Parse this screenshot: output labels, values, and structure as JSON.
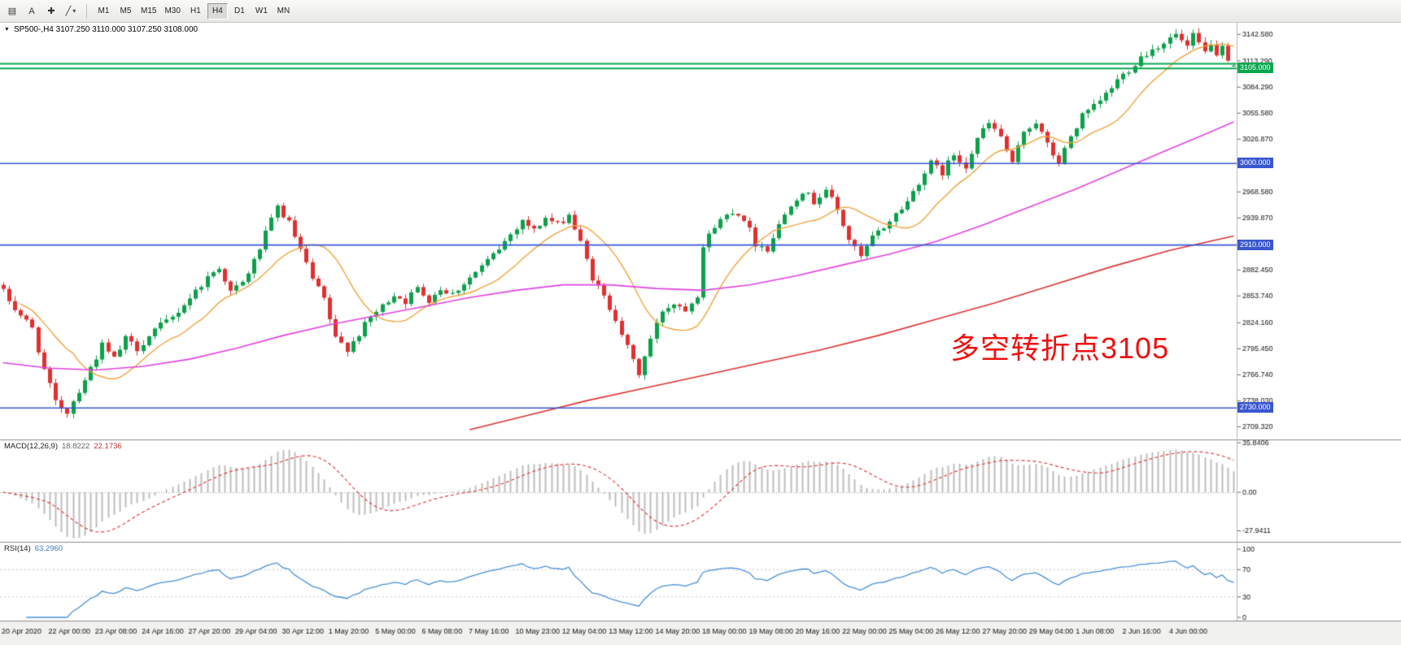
{
  "toolbar": {
    "tools": [
      {
        "id": "chart-window",
        "glyph": "▤"
      },
      {
        "id": "text-label",
        "glyph": "A"
      },
      {
        "id": "crosshair",
        "glyph": "✚"
      },
      {
        "id": "line-studies",
        "glyph": "╱",
        "caret": "▾"
      }
    ],
    "timeframes": [
      {
        "label": "M1",
        "active": false
      },
      {
        "label": "M5",
        "active": false
      },
      {
        "label": "M15",
        "active": false
      },
      {
        "label": "M30",
        "active": false
      },
      {
        "label": "H1",
        "active": false
      },
      {
        "label": "H4",
        "active": true
      },
      {
        "label": "D1",
        "active": false
      },
      {
        "label": "W1",
        "active": false
      },
      {
        "label": "MN",
        "active": false
      }
    ]
  },
  "chart_data": {
    "type": "candlestick",
    "symbol": "SP500-",
    "timeframe": "H4",
    "header_marker": "▼",
    "header": "SP500-,H4  3107.250 3110.000 3107.250 3108.000",
    "last": {
      "open": 3107.25,
      "high": 3110.0,
      "low": 3107.25,
      "close": 3108.0
    },
    "bars": 212,
    "noise": 8,
    "price_range": {
      "max": 3150,
      "min": 2698
    },
    "close_path": [
      [
        0,
        2858
      ],
      [
        2,
        2840
      ],
      [
        5,
        2818
      ],
      [
        7,
        2772
      ],
      [
        9,
        2736
      ],
      [
        11,
        2726
      ],
      [
        14,
        2762
      ],
      [
        17,
        2799
      ],
      [
        19,
        2784
      ],
      [
        21,
        2806
      ],
      [
        23,
        2796
      ],
      [
        26,
        2816
      ],
      [
        29,
        2830
      ],
      [
        32,
        2852
      ],
      [
        35,
        2874
      ],
      [
        37,
        2886
      ],
      [
        39,
        2858
      ],
      [
        41,
        2868
      ],
      [
        43,
        2892
      ],
      [
        45,
        2922
      ],
      [
        47,
        2952
      ],
      [
        49,
        2934
      ],
      [
        51,
        2904
      ],
      [
        53,
        2872
      ],
      [
        55,
        2850
      ],
      [
        57,
        2806
      ],
      [
        59,
        2796
      ],
      [
        61,
        2812
      ],
      [
        63,
        2830
      ],
      [
        65,
        2842
      ],
      [
        67,
        2856
      ],
      [
        69,
        2848
      ],
      [
        71,
        2862
      ],
      [
        73,
        2850
      ],
      [
        75,
        2862
      ],
      [
        77,
        2856
      ],
      [
        79,
        2868
      ],
      [
        81,
        2880
      ],
      [
        83,
        2892
      ],
      [
        85,
        2906
      ],
      [
        87,
        2922
      ],
      [
        89,
        2938
      ],
      [
        91,
        2926
      ],
      [
        93,
        2940
      ],
      [
        95,
        2932
      ],
      [
        97,
        2944
      ],
      [
        99,
        2912
      ],
      [
        101,
        2874
      ],
      [
        103,
        2852
      ],
      [
        105,
        2830
      ],
      [
        107,
        2796
      ],
      [
        109,
        2768
      ],
      [
        111,
        2806
      ],
      [
        113,
        2838
      ],
      [
        115,
        2846
      ],
      [
        117,
        2840
      ],
      [
        119,
        2856
      ],
      [
        120,
        2908
      ],
      [
        122,
        2932
      ],
      [
        125,
        2948
      ],
      [
        127,
        2940
      ],
      [
        129,
        2912
      ],
      [
        131,
        2906
      ],
      [
        133,
        2932
      ],
      [
        135,
        2956
      ],
      [
        137,
        2970
      ],
      [
        139,
        2958
      ],
      [
        141,
        2972
      ],
      [
        143,
        2948
      ],
      [
        145,
        2916
      ],
      [
        147,
        2896
      ],
      [
        149,
        2918
      ],
      [
        151,
        2930
      ],
      [
        153,
        2944
      ],
      [
        155,
        2958
      ],
      [
        157,
        2980
      ],
      [
        159,
        3000
      ],
      [
        161,
        2990
      ],
      [
        163,
        3010
      ],
      [
        165,
        2998
      ],
      [
        167,
        3028
      ],
      [
        169,
        3044
      ],
      [
        171,
        3030
      ],
      [
        173,
        2998
      ],
      [
        175,
        3036
      ],
      [
        177,
        3046
      ],
      [
        179,
        3020
      ],
      [
        181,
        3000
      ],
      [
        183,
        3030
      ],
      [
        185,
        3052
      ],
      [
        187,
        3062
      ],
      [
        189,
        3076
      ],
      [
        191,
        3092
      ],
      [
        193,
        3104
      ],
      [
        195,
        3118
      ],
      [
        197,
        3126
      ],
      [
        199,
        3134
      ],
      [
        201,
        3142
      ],
      [
        203,
        3128
      ],
      [
        204,
        3140
      ],
      [
        205,
        3132
      ],
      [
        206,
        3122
      ],
      [
        207,
        3134
      ],
      [
        208,
        3116
      ],
      [
        209,
        3126
      ],
      [
        210,
        3112
      ],
      [
        211,
        3108
      ]
    ],
    "y_ticks": [
      "3142.580",
      "3113.290",
      "3084.290",
      "3055.580",
      "3026.870",
      "2968.580",
      "2939.870",
      "2882.450",
      "2853.740",
      "2824.160",
      "2795.450",
      "2766.740",
      "2738.030",
      "2709.320"
    ],
    "horizontal_lines": [
      {
        "price": 3110.0,
        "color": "#09a84e",
        "width": 2,
        "badge": null
      },
      {
        "price": 3105.0,
        "color": "#09a84e",
        "width": 2,
        "badge": "3105.000"
      },
      {
        "price": 3000.0,
        "color": "#3a57d0",
        "width": 1.6,
        "badge": "3000.000"
      },
      {
        "price": 2910.0,
        "color": "#3a57d0",
        "width": 1.6,
        "badge": "2910.000"
      },
      {
        "price": 2730.0,
        "color": "#3a57d0",
        "width": 1.6,
        "badge": "2730.000"
      }
    ],
    "candle_colors": {
      "up": "#0ba14a",
      "down": "#e03030"
    },
    "overlays": {
      "fast_ma": {
        "period": 13,
        "color": "#f0a43c"
      },
      "mid_ma": {
        "color": "#e243e0",
        "points": [
          [
            0,
            2780
          ],
          [
            8,
            2774
          ],
          [
            16,
            2772
          ],
          [
            24,
            2776
          ],
          [
            32,
            2784
          ],
          [
            40,
            2796
          ],
          [
            48,
            2810
          ],
          [
            56,
            2822
          ],
          [
            64,
            2832
          ],
          [
            72,
            2842
          ],
          [
            80,
            2852
          ],
          [
            88,
            2860
          ],
          [
            96,
            2866
          ],
          [
            104,
            2866
          ],
          [
            112,
            2862
          ],
          [
            120,
            2860
          ],
          [
            128,
            2866
          ],
          [
            136,
            2876
          ],
          [
            144,
            2888
          ],
          [
            152,
            2900
          ],
          [
            160,
            2914
          ],
          [
            168,
            2932
          ],
          [
            176,
            2952
          ],
          [
            184,
            2972
          ],
          [
            192,
            2994
          ],
          [
            200,
            3016
          ],
          [
            206,
            3032
          ],
          [
            211,
            3046
          ]
        ]
      },
      "slow_ma": {
        "color": "#dd3333",
        "points": [
          [
            80,
            2706
          ],
          [
            90,
            2722
          ],
          [
            100,
            2738
          ],
          [
            110,
            2752
          ],
          [
            120,
            2766
          ],
          [
            130,
            2780
          ],
          [
            140,
            2794
          ],
          [
            150,
            2810
          ],
          [
            160,
            2828
          ],
          [
            170,
            2846
          ],
          [
            180,
            2866
          ],
          [
            190,
            2886
          ],
          [
            200,
            2904
          ],
          [
            211,
            2920
          ]
        ]
      }
    },
    "macd": {
      "label": "MACD(12,26,9)",
      "value_main": "18.8222",
      "value_signal": "22.1736",
      "ticks": [
        "35.8406",
        "0.00",
        "-27.9411"
      ],
      "histogram_color": "#bdbdbd",
      "signal_color": "#e03030"
    },
    "rsi": {
      "label": "RSI(14)",
      "value": "63.2960",
      "ticks": [
        "100",
        "70",
        "30",
        "0"
      ],
      "levels": [
        70,
        30
      ],
      "color": "#4a90d9"
    },
    "time_labels": [
      "20 Apr 2020",
      "22 Apr 00:00",
      "23 Apr 08:00",
      "24 Apr 16:00",
      "27 Apr 20:00",
      "29 Apr 04:00",
      "30 Apr 12:00",
      "1 May 20:00",
      "5 May 00:00",
      "6 May 08:00",
      "7 May 16:00",
      "10 May 23:00",
      "12 May 04:00",
      "13 May 12:00",
      "14 May 20:00",
      "18 May 00:00",
      "19 May 08:00",
      "20 May 16:00",
      "22 May 00:00",
      "25 May 04:00",
      "26 May 12:00",
      "27 May 20:00",
      "29 May 04:00",
      "1 Jun 08:00",
      "2 Jun 16:00",
      "4 Jun 00:00"
    ],
    "annotation": {
      "text": "多空转折点3105",
      "color": "#ee1111"
    }
  }
}
